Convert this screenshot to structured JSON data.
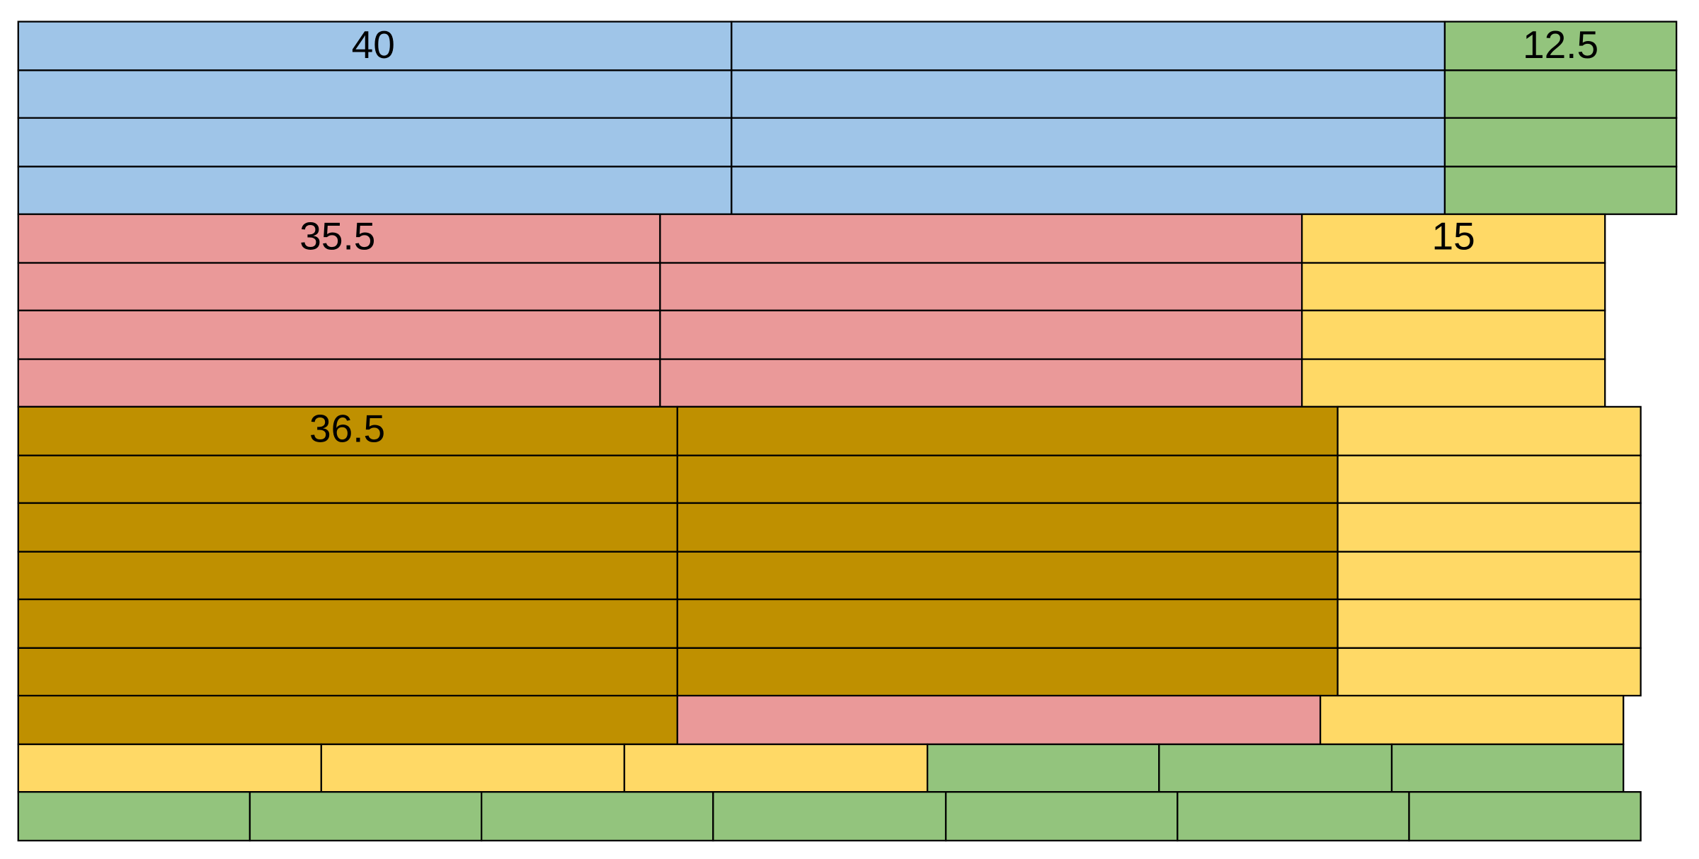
{
  "blocks": [
    {
      "label": "40"
    },
    {
      "label": "12.5"
    },
    {
      "label": "35.5"
    },
    {
      "label": "15"
    },
    {
      "label": "36.5"
    }
  ]
}
